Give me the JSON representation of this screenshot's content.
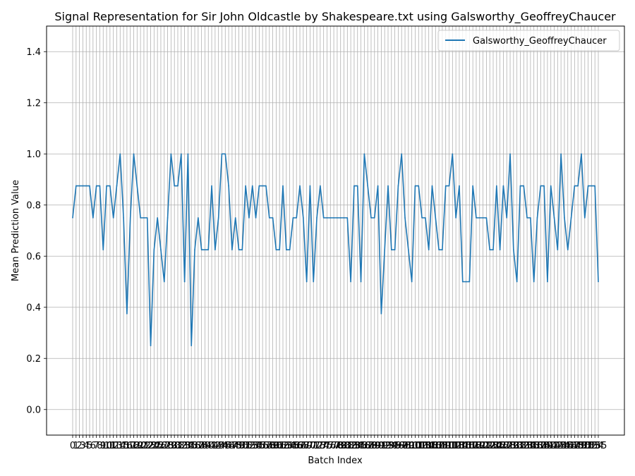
{
  "chart_data": {
    "type": "line",
    "title": "Signal Representation for Sir John Oldcastle by Shakespeare.txt using Galsworthy_GeoffreyChaucer",
    "xlabel": "Batch Index",
    "ylabel": "Mean Prediction Value",
    "ylim": [
      -0.1,
      1.5
    ],
    "yticks": [
      0.0,
      0.2,
      0.4,
      0.6,
      0.8,
      1.0,
      1.2,
      1.4
    ],
    "grid": true,
    "legend_position": "upper right",
    "series": [
      {
        "name": "Galsworthy_GeoffreyChaucer",
        "color": "#1f77b4",
        "x_start": 0,
        "values": [
          0.75,
          0.875,
          0.875,
          0.875,
          0.875,
          0.875,
          0.75,
          0.875,
          0.875,
          0.625,
          0.875,
          0.875,
          0.75,
          0.875,
          1.0,
          0.75,
          0.375,
          0.75,
          1.0,
          0.875,
          0.75,
          0.75,
          0.75,
          0.25,
          0.625,
          0.75,
          0.625,
          0.5,
          0.75,
          1.0,
          0.875,
          0.875,
          1.0,
          0.5,
          1.0,
          0.25,
          0.625,
          0.75,
          0.625,
          0.625,
          0.625,
          0.875,
          0.625,
          0.75,
          1.0,
          1.0,
          0.875,
          0.625,
          0.75,
          0.625,
          0.625,
          0.875,
          0.75,
          0.875,
          0.75,
          0.875,
          0.875,
          0.875,
          0.75,
          0.75,
          0.625,
          0.625,
          0.875,
          0.625,
          0.625,
          0.75,
          0.75,
          0.875,
          0.75,
          0.5,
          0.875,
          0.5,
          0.75,
          0.875,
          0.75,
          0.75,
          0.75,
          0.75,
          0.75,
          0.75,
          0.75,
          0.75,
          0.5,
          0.875,
          0.875,
          0.5,
          1.0,
          0.875,
          0.75,
          0.75,
          0.875,
          0.375,
          0.625,
          0.875,
          0.625,
          0.625,
          0.875,
          1.0,
          0.75,
          0.625,
          0.5,
          0.875,
          0.875,
          0.75,
          0.75,
          0.625,
          0.875,
          0.75,
          0.625,
          0.625,
          0.875,
          0.875,
          1.0,
          0.75,
          0.875,
          0.5,
          0.5,
          0.5,
          0.875,
          0.75,
          0.75,
          0.75,
          0.75,
          0.625,
          0.625,
          0.875,
          0.625,
          0.875,
          0.75,
          1.0,
          0.625,
          0.5,
          0.875,
          0.875,
          0.75,
          0.75,
          0.5,
          0.75,
          0.875,
          0.875,
          0.5,
          0.875,
          0.75,
          0.625,
          1.0,
          0.75,
          0.625,
          0.75,
          0.875,
          0.875,
          1.0,
          0.75,
          0.875,
          0.875,
          0.875,
          0.5
        ]
      }
    ]
  }
}
